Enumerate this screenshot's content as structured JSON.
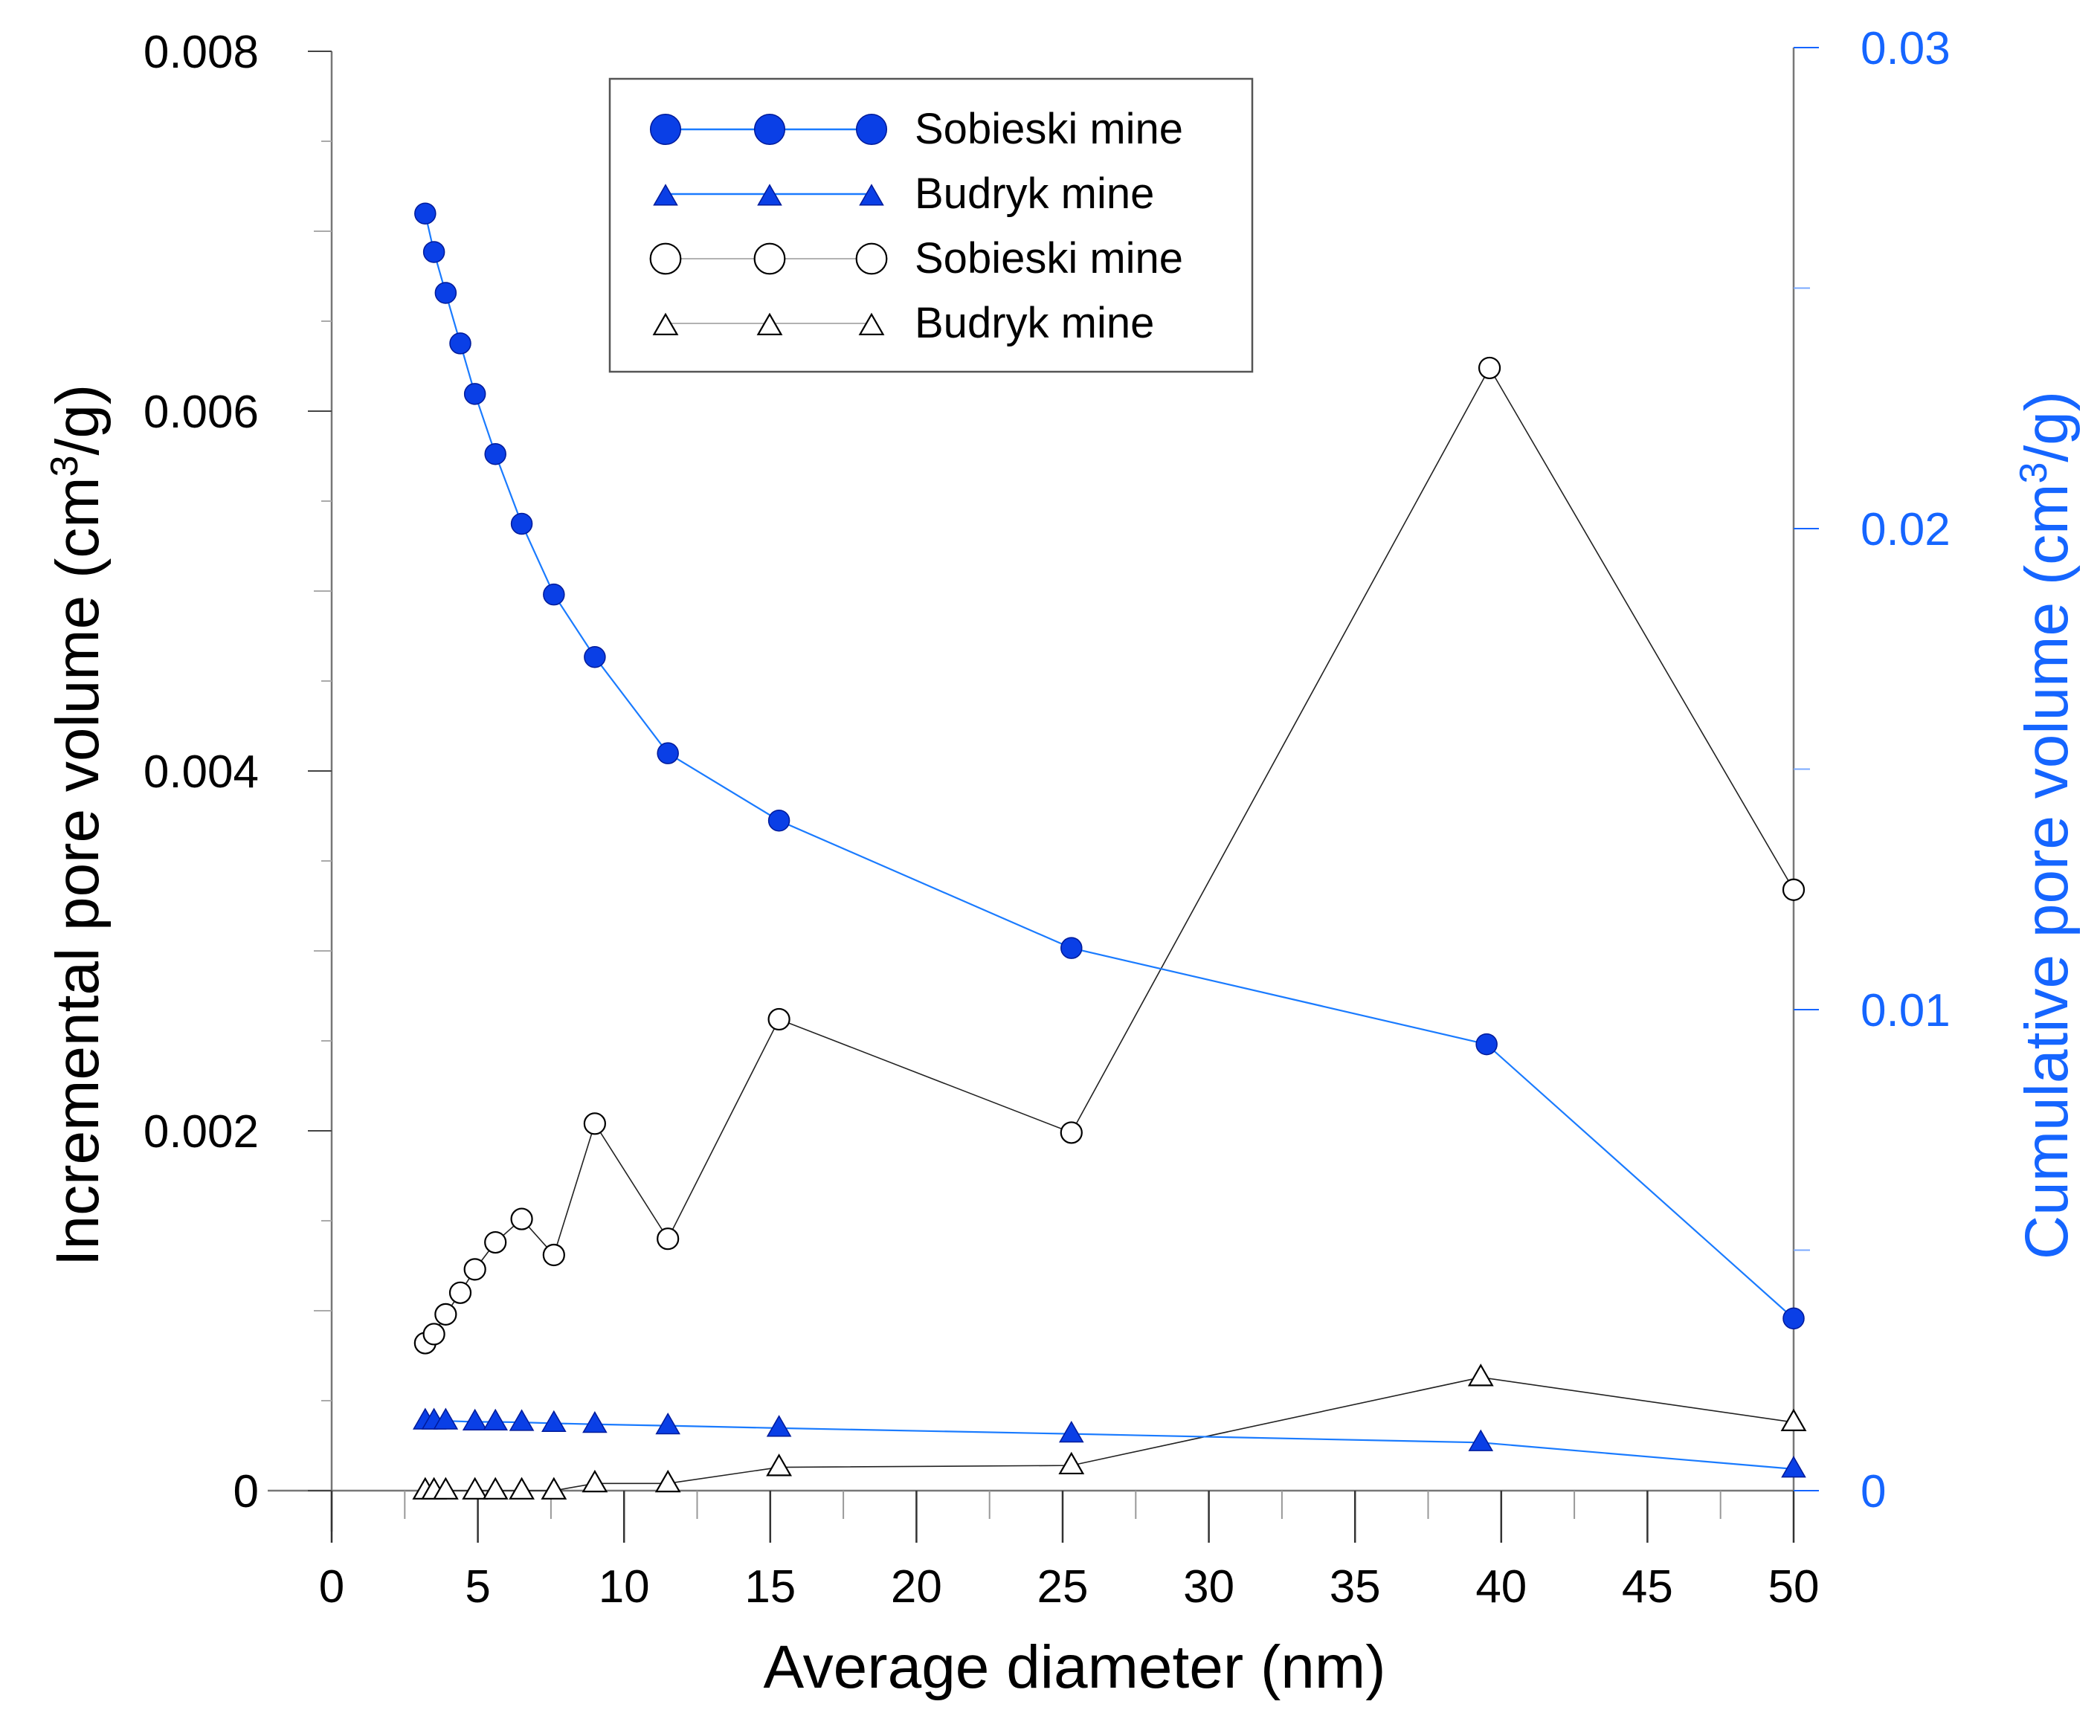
{
  "colors": {
    "blue": "#0a3fe6",
    "line_blue": "#1a7bff",
    "axis_right": "#1565ff",
    "black": "#000000",
    "axis_gray": "#777777"
  },
  "chart_data": {
    "type": "line",
    "xlabel": "Average diameter (nm)",
    "xlim": [
      0,
      50
    ],
    "xticks": [
      0,
      5,
      10,
      15,
      20,
      25,
      30,
      35,
      40,
      45,
      50
    ],
    "xtick_labels": [
      "0",
      "5",
      "10",
      "15",
      "20",
      "25",
      "30",
      "35",
      "40",
      "45",
      "50"
    ],
    "y_left": {
      "label_prefix": "Incremental pore volume (cm",
      "label_sup": "3",
      "label_suffix": "/g)",
      "lim": [
        0,
        0.008
      ],
      "ticks": [
        0,
        0.002,
        0.004,
        0.006,
        0.008
      ],
      "tick_labels": [
        "0",
        "0.002",
        "0.004",
        "0.006",
        "0.008"
      ]
    },
    "y_right": {
      "label_prefix": "Cumulative pore volume (cm",
      "label_sup": "3",
      "label_suffix": "/g)",
      "lim": [
        0,
        0.03
      ],
      "ticks": [
        0,
        0.01,
        0.02,
        0.03
      ],
      "tick_labels": [
        "0",
        "0.01",
        "0.02",
        "0.03"
      ]
    },
    "legend_position": "top-left",
    "series": [
      {
        "name": "Sobieski mine",
        "axis": "right",
        "marker": "filled-circle",
        "x": [
          3.2,
          3.5,
          3.9,
          4.4,
          4.9,
          5.6,
          6.5,
          7.6,
          9.0,
          11.5,
          15.3,
          25.3,
          39.5,
          50.0
        ],
        "y": [
          0.02655,
          0.02575,
          0.0249,
          0.02385,
          0.0228,
          0.02155,
          0.0201,
          0.01863,
          0.01733,
          0.01533,
          0.01393,
          0.01128,
          0.00928,
          0.00358
        ]
      },
      {
        "name": "Budryk mine",
        "axis": "right",
        "marker": "filled-triangle",
        "x": [
          3.2,
          3.5,
          3.9,
          4.9,
          5.6,
          6.5,
          7.6,
          9.0,
          11.5,
          15.3,
          25.3,
          39.3,
          50.0
        ],
        "y": [
          0.00145,
          0.00145,
          0.00145,
          0.00143,
          0.00143,
          0.00142,
          0.0014,
          0.00138,
          0.00135,
          0.0013,
          0.00118,
          0.001,
          0.00045
        ]
      },
      {
        "name": "Sobieski mine",
        "axis": "left",
        "marker": "open-circle",
        "x": [
          3.2,
          3.5,
          3.9,
          4.4,
          4.9,
          5.6,
          6.5,
          7.6,
          9.0,
          11.5,
          15.3,
          25.3,
          39.6,
          50.0
        ],
        "y": [
          0.00082,
          0.00087,
          0.00098,
          0.0011,
          0.00123,
          0.00138,
          0.00151,
          0.00131,
          0.00204,
          0.0014,
          0.00262,
          0.00199,
          0.00624,
          0.00334
        ]
      },
      {
        "name": "Budryk mine",
        "axis": "left",
        "marker": "open-triangle",
        "x": [
          3.2,
          3.5,
          3.9,
          4.9,
          5.6,
          6.5,
          7.6,
          9.0,
          11.5,
          15.3,
          25.3,
          39.3,
          50.0
        ],
        "y": [
          0.0,
          0.0,
          0.0,
          0.0,
          0.0,
          0.0,
          0.0,
          4e-05,
          4e-05,
          0.00013,
          0.00014,
          0.00063,
          0.00038
        ]
      }
    ]
  }
}
